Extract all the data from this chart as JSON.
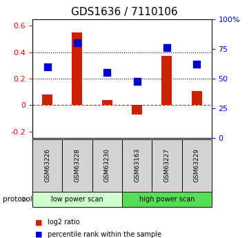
{
  "title": "GDS1636 / 7110106",
  "samples": [
    "GSM63226",
    "GSM63228",
    "GSM63230",
    "GSM63163",
    "GSM63227",
    "GSM63229"
  ],
  "log2_ratio": [
    0.08,
    0.55,
    0.035,
    -0.07,
    0.37,
    0.105
  ],
  "percentile_rank": [
    0.6,
    0.8,
    0.55,
    0.475,
    0.76,
    0.62
  ],
  "groups": [
    {
      "label": "low power scan",
      "color": "#ccffcc",
      "start": 0,
      "end": 3
    },
    {
      "label": "high power scan",
      "color": "#55dd55",
      "start": 3,
      "end": 6
    }
  ],
  "ylim_left": [
    -0.25,
    0.65
  ],
  "ylim_right": [
    0,
    1.0
  ],
  "yticks_left": [
    -0.2,
    0.0,
    0.2,
    0.4,
    0.6
  ],
  "ytick_labels_left": [
    "-0.2",
    "0",
    "0.2",
    "0.4",
    "0.6"
  ],
  "yticks_right": [
    0,
    0.25,
    0.5,
    0.75,
    1.0
  ],
  "ytick_labels_right": [
    "0",
    "25",
    "50",
    "75",
    "100%"
  ],
  "hlines": [
    0.2,
    0.4
  ],
  "bar_color": "#cc2200",
  "dot_color": "#0000cc",
  "bar_width": 0.35,
  "dot_size": 50,
  "zero_line_color": "#cc2200",
  "protocol_label": "protocol",
  "legend_items": [
    {
      "color": "#cc2200",
      "label": "log2 ratio"
    },
    {
      "color": "#0000cc",
      "label": "percentile rank within the sample"
    }
  ]
}
